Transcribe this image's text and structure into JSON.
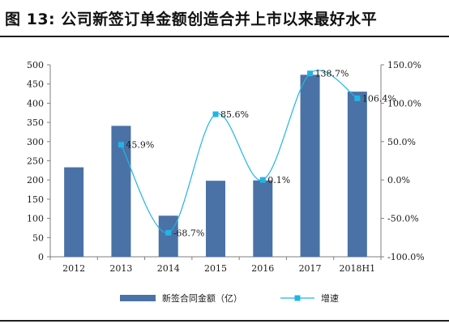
{
  "header": {
    "title": "图 13: 公司新签订单金额创造合并上市以来最好水平"
  },
  "chart_data": {
    "type": "bar+line",
    "categories": [
      "2012",
      "2013",
      "2014",
      "2015",
      "2016",
      "2017",
      "2018H1"
    ],
    "series": [
      {
        "name": "新签合同金额（亿）",
        "type": "bar",
        "axis": "left",
        "color": "#4a72a6",
        "values": [
          233,
          341,
          107,
          198,
          199,
          474,
          430
        ]
      },
      {
        "name": "增速",
        "type": "line",
        "axis": "right",
        "color": "#23b4e6",
        "values": [
          null,
          45.9,
          -68.7,
          85.6,
          0.1,
          138.7,
          106.4
        ],
        "labels": [
          "",
          "45.9%",
          "-68.7%",
          "85.6%",
          "0.1%",
          "138.7%",
          "106.4%"
        ]
      }
    ],
    "y_left": {
      "ylim": [
        0,
        500
      ],
      "ticks": [
        "0",
        "50",
        "100",
        "150",
        "200",
        "250",
        "300",
        "350",
        "400",
        "450",
        "500"
      ]
    },
    "y_right": {
      "ylim": [
        -100,
        150
      ],
      "ticks": [
        "-100.0%",
        "-50.0%",
        "0.0%",
        "50.0%",
        "100.0%",
        "150.0%"
      ]
    },
    "legend_position": "bottom-center",
    "grid": false
  }
}
